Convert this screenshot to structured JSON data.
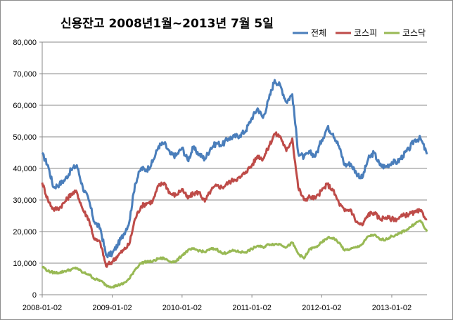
{
  "chart_data": {
    "type": "line",
    "title": "신용잔고 2008년1월~2013년 7월 5일",
    "xlabel": "",
    "ylabel": "",
    "ylim": [
      0,
      80000
    ],
    "yticks": [
      "0",
      "10,000",
      "20,000",
      "30,000",
      "40,000",
      "50,000",
      "60,000",
      "70,000",
      "80,000"
    ],
    "xticks": [
      "2008-01-02",
      "2009-01-02",
      "2010-01-02",
      "2011-01-02",
      "2012-01-02",
      "2013-01-02"
    ],
    "xlim": [
      "2008-01-02",
      "2013-07-05"
    ],
    "grid": "horizontal",
    "legend_position": "top-right",
    "series": [
      {
        "name": "전체",
        "color": "#4a7ebb",
        "points": [
          [
            "2008-01-02",
            44500
          ],
          [
            "2008-02-01",
            41000
          ],
          [
            "2008-03-01",
            34000
          ],
          [
            "2008-04-01",
            35000
          ],
          [
            "2008-05-01",
            36500
          ],
          [
            "2008-06-01",
            39500
          ],
          [
            "2008-07-01",
            41000
          ],
          [
            "2008-08-01",
            34000
          ],
          [
            "2008-09-01",
            30000
          ],
          [
            "2008-10-01",
            23000
          ],
          [
            "2008-11-01",
            21000
          ],
          [
            "2008-12-01",
            12500
          ],
          [
            "2009-01-02",
            13000
          ],
          [
            "2009-02-01",
            16000
          ],
          [
            "2009-03-01",
            19000
          ],
          [
            "2009-04-01",
            23000
          ],
          [
            "2009-05-01",
            35000
          ],
          [
            "2009-06-01",
            40000
          ],
          [
            "2009-07-01",
            39500
          ],
          [
            "2009-08-01",
            42000
          ],
          [
            "2009-09-01",
            47000
          ],
          [
            "2009-10-01",
            48000
          ],
          [
            "2009-11-01",
            44500
          ],
          [
            "2009-12-01",
            44000
          ],
          [
            "2010-01-02",
            46500
          ],
          [
            "2010-02-01",
            42500
          ],
          [
            "2010-03-01",
            46500
          ],
          [
            "2010-04-01",
            44500
          ],
          [
            "2010-05-01",
            43000
          ],
          [
            "2010-06-01",
            46500
          ],
          [
            "2010-07-01",
            48000
          ],
          [
            "2010-08-01",
            47500
          ],
          [
            "2010-09-01",
            49500
          ],
          [
            "2010-10-01",
            50000
          ],
          [
            "2010-11-01",
            50500
          ],
          [
            "2010-12-01",
            52000
          ],
          [
            "2011-01-02",
            56000
          ],
          [
            "2011-02-01",
            59000
          ],
          [
            "2011-03-01",
            56000
          ],
          [
            "2011-04-01",
            62000
          ],
          [
            "2011-05-01",
            68000
          ],
          [
            "2011-06-01",
            66000
          ],
          [
            "2011-07-01",
            61000
          ],
          [
            "2011-08-01",
            63500
          ],
          [
            "2011-09-01",
            45000
          ],
          [
            "2011-10-01",
            43500
          ],
          [
            "2011-11-01",
            45000
          ],
          [
            "2011-12-01",
            44000
          ],
          [
            "2012-01-02",
            49000
          ],
          [
            "2012-02-01",
            53000
          ],
          [
            "2012-03-01",
            51000
          ],
          [
            "2012-04-01",
            47000
          ],
          [
            "2012-05-01",
            41000
          ],
          [
            "2012-06-01",
            41500
          ],
          [
            "2012-07-01",
            38500
          ],
          [
            "2012-08-01",
            37000
          ],
          [
            "2012-09-01",
            43000
          ],
          [
            "2012-10-01",
            45000
          ],
          [
            "2012-11-01",
            41000
          ],
          [
            "2012-12-01",
            40500
          ],
          [
            "2013-01-02",
            42000
          ],
          [
            "2013-02-01",
            42000
          ],
          [
            "2013-03-01",
            44000
          ],
          [
            "2013-04-01",
            46000
          ],
          [
            "2013-05-01",
            49000
          ],
          [
            "2013-06-01",
            49500
          ],
          [
            "2013-07-05",
            44500
          ]
        ]
      },
      {
        "name": "코스피",
        "color": "#be4b48",
        "points": [
          [
            "2008-01-02",
            35500
          ],
          [
            "2008-02-01",
            30000
          ],
          [
            "2008-03-01",
            27000
          ],
          [
            "2008-04-01",
            27500
          ],
          [
            "2008-05-01",
            29500
          ],
          [
            "2008-06-01",
            32000
          ],
          [
            "2008-07-01",
            32500
          ],
          [
            "2008-08-01",
            27000
          ],
          [
            "2008-09-01",
            24000
          ],
          [
            "2008-10-01",
            17500
          ],
          [
            "2008-11-01",
            16500
          ],
          [
            "2008-12-01",
            9000
          ],
          [
            "2009-01-02",
            10500
          ],
          [
            "2009-02-01",
            12500
          ],
          [
            "2009-03-01",
            14000
          ],
          [
            "2009-04-01",
            16000
          ],
          [
            "2009-05-01",
            24000
          ],
          [
            "2009-06-01",
            28000
          ],
          [
            "2009-07-01",
            29000
          ],
          [
            "2009-08-01",
            29500
          ],
          [
            "2009-09-01",
            34500
          ],
          [
            "2009-10-01",
            35500
          ],
          [
            "2009-11-01",
            32000
          ],
          [
            "2009-12-01",
            31500
          ],
          [
            "2010-01-02",
            33500
          ],
          [
            "2010-02-01",
            30500
          ],
          [
            "2010-03-01",
            32000
          ],
          [
            "2010-04-01",
            32500
          ],
          [
            "2010-05-01",
            29500
          ],
          [
            "2010-06-01",
            33000
          ],
          [
            "2010-07-01",
            34500
          ],
          [
            "2010-08-01",
            34000
          ],
          [
            "2010-09-01",
            35500
          ],
          [
            "2010-10-01",
            36500
          ],
          [
            "2010-11-01",
            37000
          ],
          [
            "2010-12-01",
            39000
          ],
          [
            "2011-01-02",
            41000
          ],
          [
            "2011-02-01",
            44000
          ],
          [
            "2011-03-01",
            43000
          ],
          [
            "2011-04-01",
            47000
          ],
          [
            "2011-05-01",
            51000
          ],
          [
            "2011-06-01",
            50000
          ],
          [
            "2011-07-01",
            45500
          ],
          [
            "2011-08-01",
            49500
          ],
          [
            "2011-09-01",
            34000
          ],
          [
            "2011-10-01",
            30000
          ],
          [
            "2011-11-01",
            31000
          ],
          [
            "2011-12-01",
            30500
          ],
          [
            "2012-01-02",
            33000
          ],
          [
            "2012-02-01",
            35000
          ],
          [
            "2012-03-01",
            33000
          ],
          [
            "2012-04-01",
            29000
          ],
          [
            "2012-05-01",
            26500
          ],
          [
            "2012-06-01",
            27000
          ],
          [
            "2012-07-01",
            23000
          ],
          [
            "2012-08-01",
            22000
          ],
          [
            "2012-09-01",
            25500
          ],
          [
            "2012-10-01",
            26000
          ],
          [
            "2012-11-01",
            24000
          ],
          [
            "2012-12-01",
            24500
          ],
          [
            "2013-01-02",
            24000
          ],
          [
            "2013-02-01",
            24000
          ],
          [
            "2013-03-01",
            25000
          ],
          [
            "2013-04-01",
            25500
          ],
          [
            "2013-05-01",
            26000
          ],
          [
            "2013-06-01",
            26500
          ],
          [
            "2013-07-05",
            24000
          ]
        ]
      },
      {
        "name": "코스닥",
        "color": "#98b954",
        "points": [
          [
            "2008-01-02",
            9000
          ],
          [
            "2008-02-01",
            7500
          ],
          [
            "2008-03-01",
            7000
          ],
          [
            "2008-04-01",
            7000
          ],
          [
            "2008-05-01",
            7500
          ],
          [
            "2008-06-01",
            8000
          ],
          [
            "2008-07-01",
            8500
          ],
          [
            "2008-08-01",
            7000
          ],
          [
            "2008-09-01",
            6500
          ],
          [
            "2008-10-01",
            5000
          ],
          [
            "2008-11-01",
            4500
          ],
          [
            "2008-12-01",
            3000
          ],
          [
            "2009-01-02",
            2500
          ],
          [
            "2009-02-01",
            3000
          ],
          [
            "2009-03-01",
            3500
          ],
          [
            "2009-04-01",
            5000
          ],
          [
            "2009-05-01",
            8000
          ],
          [
            "2009-06-01",
            10000
          ],
          [
            "2009-07-01",
            10500
          ],
          [
            "2009-08-01",
            10500
          ],
          [
            "2009-09-01",
            11500
          ],
          [
            "2009-10-01",
            11500
          ],
          [
            "2009-11-01",
            10500
          ],
          [
            "2009-12-01",
            10500
          ],
          [
            "2010-01-02",
            12500
          ],
          [
            "2010-02-01",
            14000
          ],
          [
            "2010-03-01",
            14500
          ],
          [
            "2010-04-01",
            14000
          ],
          [
            "2010-05-01",
            13500
          ],
          [
            "2010-06-01",
            14500
          ],
          [
            "2010-07-01",
            14500
          ],
          [
            "2010-08-01",
            13000
          ],
          [
            "2010-09-01",
            13500
          ],
          [
            "2010-10-01",
            14000
          ],
          [
            "2010-11-01",
            13500
          ],
          [
            "2010-12-01",
            13500
          ],
          [
            "2011-01-02",
            14500
          ],
          [
            "2011-02-01",
            15500
          ],
          [
            "2011-03-01",
            15000
          ],
          [
            "2011-04-01",
            16000
          ],
          [
            "2011-05-01",
            16000
          ],
          [
            "2011-06-01",
            16000
          ],
          [
            "2011-07-01",
            15000
          ],
          [
            "2011-08-01",
            16500
          ],
          [
            "2011-09-01",
            13000
          ],
          [
            "2011-10-01",
            11500
          ],
          [
            "2011-11-01",
            14500
          ],
          [
            "2011-12-01",
            15000
          ],
          [
            "2012-01-02",
            16500
          ],
          [
            "2012-02-01",
            18000
          ],
          [
            "2012-03-01",
            18000
          ],
          [
            "2012-04-01",
            16500
          ],
          [
            "2012-05-01",
            14000
          ],
          [
            "2012-06-01",
            14500
          ],
          [
            "2012-07-01",
            15000
          ],
          [
            "2012-08-01",
            16000
          ],
          [
            "2012-09-01",
            18500
          ],
          [
            "2012-10-01",
            19000
          ],
          [
            "2012-11-01",
            17500
          ],
          [
            "2012-12-01",
            17500
          ],
          [
            "2013-01-02",
            18500
          ],
          [
            "2013-02-01",
            19000
          ],
          [
            "2013-03-01",
            20000
          ],
          [
            "2013-04-01",
            21000
          ],
          [
            "2013-05-01",
            22500
          ],
          [
            "2013-06-01",
            23500
          ],
          [
            "2013-07-05",
            20000
          ]
        ]
      }
    ]
  }
}
